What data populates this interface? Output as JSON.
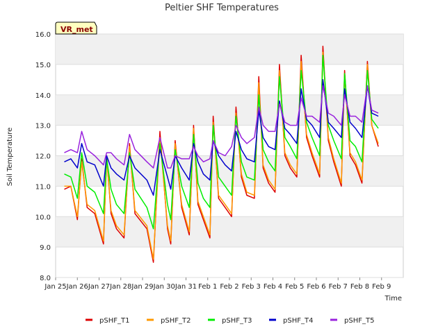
{
  "chart_data": {
    "type": "line",
    "title": "Peltier SHF Temperatures",
    "xlabel": "Time",
    "ylabel": "Soil Temperature",
    "badge": "VR_met",
    "ylim": [
      8.0,
      16.0
    ],
    "yticks": [
      "8.0",
      "9.0",
      "10.0",
      "11.0",
      "12.0",
      "13.0",
      "14.0",
      "15.0",
      "16.0"
    ],
    "xlim": [
      0,
      16
    ],
    "xticks": [
      "Jan 25",
      "Jan 26",
      "Jan 27",
      "Jan 28",
      "Jan 29",
      "Jan 30",
      "Jan 31",
      "Feb 1",
      "Feb 2",
      "Feb 3",
      "Feb 4",
      "Feb 5",
      "Feb 6",
      "Feb 7",
      "Feb 8",
      "Feb 9"
    ],
    "grid": true,
    "legend_position": "bottom",
    "series": [
      {
        "name": "pSHF_T1",
        "color": "#dd0000",
        "x": [
          0.4,
          0.7,
          1.0,
          1.2,
          1.45,
          1.8,
          2.2,
          2.35,
          2.55,
          2.8,
          3.15,
          3.4,
          3.65,
          4.2,
          4.5,
          4.8,
          5.15,
          5.3,
          5.5,
          5.8,
          6.15,
          6.35,
          6.55,
          6.8,
          7.1,
          7.25,
          7.5,
          7.8,
          8.1,
          8.3,
          8.55,
          8.8,
          9.15,
          9.35,
          9.55,
          9.8,
          10.1,
          10.3,
          10.55,
          10.8,
          11.1,
          11.3,
          11.55,
          11.8,
          12.15,
          12.3,
          12.55,
          12.8,
          13.15,
          13.3,
          13.55,
          13.8,
          14.1,
          14.35,
          14.55,
          14.85
        ],
        "y": [
          10.9,
          11.0,
          9.9,
          11.9,
          10.3,
          10.1,
          9.1,
          12.0,
          10.1,
          9.6,
          9.3,
          12.4,
          10.1,
          9.6,
          8.5,
          12.8,
          9.6,
          9.1,
          12.5,
          10.3,
          9.4,
          13.0,
          10.4,
          9.9,
          9.3,
          13.3,
          10.6,
          10.3,
          10.0,
          13.6,
          11.3,
          10.7,
          10.6,
          14.6,
          11.6,
          11.1,
          10.8,
          15.0,
          12.0,
          11.6,
          11.3,
          15.3,
          12.6,
          12.0,
          11.3,
          15.6,
          12.5,
          11.8,
          11.0,
          14.8,
          12.0,
          11.7,
          11.1,
          15.1,
          13.0,
          12.3
        ]
      },
      {
        "name": "pSHF_T2",
        "color": "#ff9900",
        "x": [
          0.4,
          0.7,
          1.0,
          1.2,
          1.45,
          1.8,
          2.2,
          2.35,
          2.55,
          2.8,
          3.15,
          3.4,
          3.65,
          4.2,
          4.5,
          4.8,
          5.15,
          5.3,
          5.5,
          5.8,
          6.15,
          6.35,
          6.55,
          6.8,
          7.1,
          7.25,
          7.5,
          7.8,
          8.1,
          8.3,
          8.55,
          8.8,
          9.15,
          9.35,
          9.55,
          9.8,
          10.1,
          10.3,
          10.55,
          10.8,
          11.1,
          11.3,
          11.55,
          11.8,
          12.15,
          12.3,
          12.55,
          12.8,
          13.15,
          13.3,
          13.55,
          13.8,
          14.1,
          14.35,
          14.55,
          14.85
        ],
        "y": [
          11.0,
          11.0,
          10.0,
          11.8,
          10.4,
          10.2,
          9.2,
          11.9,
          10.2,
          9.7,
          9.4,
          12.3,
          10.2,
          9.7,
          8.6,
          12.6,
          9.7,
          9.2,
          12.4,
          10.4,
          9.5,
          12.9,
          10.5,
          10.0,
          9.4,
          13.1,
          10.7,
          10.4,
          10.1,
          13.4,
          11.4,
          10.8,
          10.7,
          14.4,
          11.7,
          11.2,
          10.9,
          14.8,
          12.1,
          11.7,
          11.4,
          15.1,
          12.7,
          12.1,
          11.4,
          15.4,
          12.6,
          11.9,
          11.1,
          14.7,
          12.1,
          11.8,
          11.2,
          15.0,
          13.0,
          12.4
        ]
      },
      {
        "name": "pSHF_T3",
        "color": "#00ee00",
        "x": [
          0.4,
          0.7,
          1.0,
          1.2,
          1.45,
          1.8,
          2.2,
          2.35,
          2.55,
          2.8,
          3.15,
          3.4,
          3.65,
          4.2,
          4.5,
          4.8,
          5.15,
          5.3,
          5.5,
          5.8,
          6.15,
          6.35,
          6.55,
          6.8,
          7.1,
          7.25,
          7.5,
          7.8,
          8.1,
          8.3,
          8.55,
          8.8,
          9.15,
          9.35,
          9.55,
          9.8,
          10.1,
          10.3,
          10.55,
          10.8,
          11.1,
          11.3,
          11.55,
          11.8,
          12.15,
          12.3,
          12.55,
          12.8,
          13.15,
          13.3,
          13.55,
          13.8,
          14.1,
          14.35,
          14.55,
          14.85
        ],
        "y": [
          11.4,
          11.3,
          10.6,
          12.1,
          11.0,
          10.8,
          10.1,
          11.9,
          10.9,
          10.4,
          10.1,
          12.1,
          10.9,
          10.3,
          9.6,
          12.4,
          10.4,
          9.9,
          12.2,
          11.0,
          10.3,
          12.7,
          11.1,
          10.6,
          10.3,
          13.0,
          11.3,
          11.0,
          10.7,
          13.3,
          11.8,
          11.3,
          11.2,
          14.0,
          12.2,
          11.8,
          11.5,
          14.6,
          12.6,
          12.3,
          11.9,
          14.8,
          13.1,
          12.6,
          12.0,
          15.3,
          13.0,
          12.5,
          11.9,
          14.7,
          12.5,
          12.3,
          11.8,
          14.8,
          13.2,
          12.9
        ]
      },
      {
        "name": "pSHF_T4",
        "color": "#0000cc",
        "x": [
          0.4,
          0.7,
          1.0,
          1.2,
          1.45,
          1.8,
          2.2,
          2.35,
          2.55,
          2.8,
          3.15,
          3.4,
          3.65,
          4.2,
          4.5,
          4.8,
          5.15,
          5.3,
          5.5,
          5.8,
          6.15,
          6.35,
          6.55,
          6.8,
          7.1,
          7.25,
          7.5,
          7.8,
          8.1,
          8.3,
          8.55,
          8.8,
          9.15,
          9.35,
          9.55,
          9.8,
          10.1,
          10.3,
          10.55,
          10.8,
          11.1,
          11.3,
          11.55,
          11.8,
          12.15,
          12.3,
          12.55,
          12.8,
          13.15,
          13.3,
          13.55,
          13.8,
          14.1,
          14.35,
          14.55,
          14.85
        ],
        "y": [
          11.8,
          11.9,
          11.6,
          12.4,
          11.8,
          11.7,
          11.0,
          12.0,
          11.6,
          11.4,
          11.2,
          12.0,
          11.6,
          11.2,
          10.7,
          12.2,
          11.3,
          10.9,
          12.0,
          11.6,
          11.2,
          12.4,
          11.8,
          11.4,
          11.2,
          12.5,
          12.0,
          11.7,
          11.5,
          12.8,
          12.2,
          11.9,
          11.8,
          13.5,
          12.6,
          12.3,
          12.2,
          13.8,
          12.9,
          12.7,
          12.4,
          14.2,
          13.2,
          13.0,
          12.6,
          14.5,
          13.1,
          12.9,
          12.6,
          14.2,
          13.1,
          12.9,
          12.6,
          14.3,
          13.4,
          13.3
        ]
      },
      {
        "name": "pSHF_T5",
        "color": "#9922dd",
        "x": [
          0.4,
          0.7,
          1.0,
          1.2,
          1.45,
          1.8,
          2.2,
          2.35,
          2.55,
          2.8,
          3.15,
          3.4,
          3.65,
          4.2,
          4.5,
          4.8,
          5.15,
          5.3,
          5.5,
          5.8,
          6.15,
          6.35,
          6.55,
          6.8,
          7.1,
          7.25,
          7.5,
          7.8,
          8.1,
          8.3,
          8.55,
          8.8,
          9.15,
          9.35,
          9.55,
          9.8,
          10.1,
          10.3,
          10.55,
          10.8,
          11.1,
          11.3,
          11.55,
          11.8,
          12.15,
          12.3,
          12.55,
          12.8,
          13.15,
          13.3,
          13.55,
          13.8,
          14.1,
          14.35,
          14.55,
          14.85
        ],
        "y": [
          12.1,
          12.2,
          12.1,
          12.8,
          12.2,
          12.0,
          11.7,
          12.1,
          12.1,
          11.9,
          11.7,
          12.7,
          12.2,
          11.8,
          11.6,
          12.6,
          11.6,
          11.6,
          12.0,
          11.9,
          11.9,
          12.3,
          12.0,
          11.8,
          11.9,
          12.5,
          12.1,
          12.0,
          12.3,
          13.0,
          12.6,
          12.4,
          12.6,
          13.6,
          13.0,
          12.8,
          12.8,
          13.7,
          13.1,
          13.0,
          13.0,
          13.9,
          13.3,
          13.3,
          13.1,
          14.3,
          13.4,
          13.3,
          13.0,
          14.0,
          13.3,
          13.3,
          13.1,
          14.3,
          13.5,
          13.4
        ]
      }
    ]
  }
}
